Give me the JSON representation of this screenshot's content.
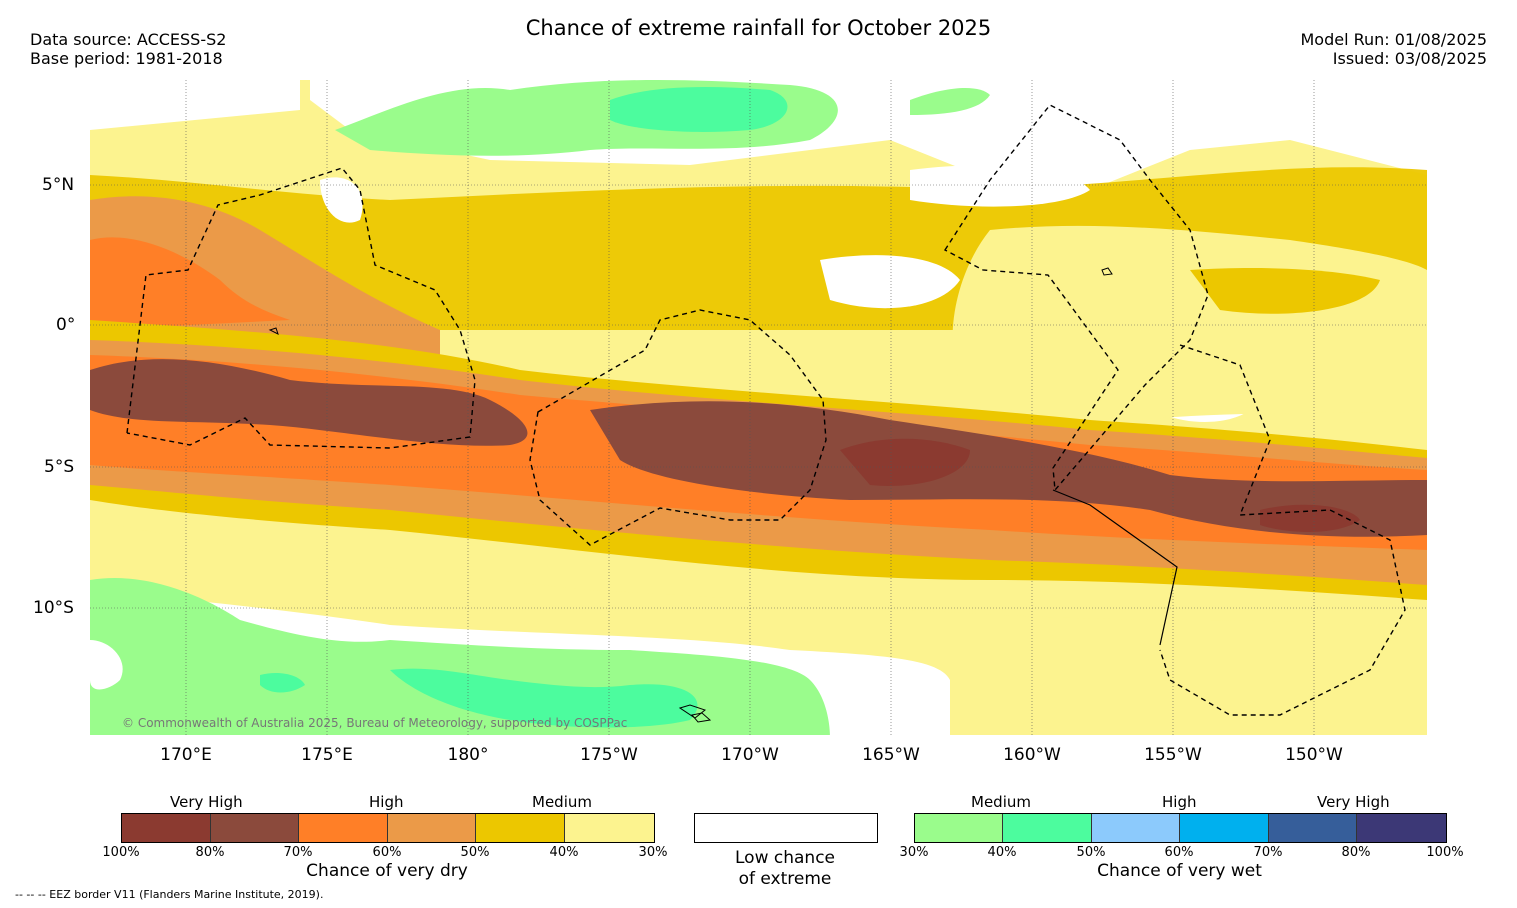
{
  "title": "Chance of extreme rainfall for October 2025",
  "header_left": {
    "data_source": "Data source: ACCESS-S2",
    "base_period": "Base period: 1981-2018"
  },
  "header_right": {
    "model_run": "Model Run: 01/08/2025",
    "issued": "Issued: 03/08/2025"
  },
  "lat_labels": [
    "5°N",
    "0°",
    "5°S",
    "10°S"
  ],
  "lon_labels": [
    "170°E",
    "175°E",
    "180°",
    "175°W",
    "170°W",
    "165°W",
    "160°W",
    "155°W",
    "150°W"
  ],
  "copyright": "© Commonwealth of Australia 2025, Bureau of Meteorology, supported by COSPPac",
  "legend_dry": {
    "levels": [
      "Very High",
      "High",
      "Medium"
    ],
    "ticks": [
      "100%",
      "80%",
      "70%",
      "60%",
      "50%",
      "40%",
      "30%"
    ],
    "caption": "Chance of very dry",
    "colors": [
      "#8b3a30",
      "#8b4a3c",
      "#ff7f27",
      "#eb9a48",
      "#ecc700",
      "#fcf38f"
    ]
  },
  "legend_low": {
    "caption_line1": "Low chance",
    "caption_line2": "of extreme",
    "color": "#ffffff"
  },
  "legend_wet": {
    "levels": [
      "Medium",
      "High",
      "Very High"
    ],
    "ticks": [
      "30%",
      "40%",
      "50%",
      "60%",
      "70%",
      "80%",
      "100%"
    ],
    "caption": "Chance of very wet",
    "colors": [
      "#9afc8c",
      "#4cfc9e",
      "#8ccafc",
      "#00b0ee",
      "#365e9a",
      "#3c3876"
    ]
  },
  "eez_note": "-- -- -- EEZ border V11 (Flanders Marine Institute, 2019)."
}
